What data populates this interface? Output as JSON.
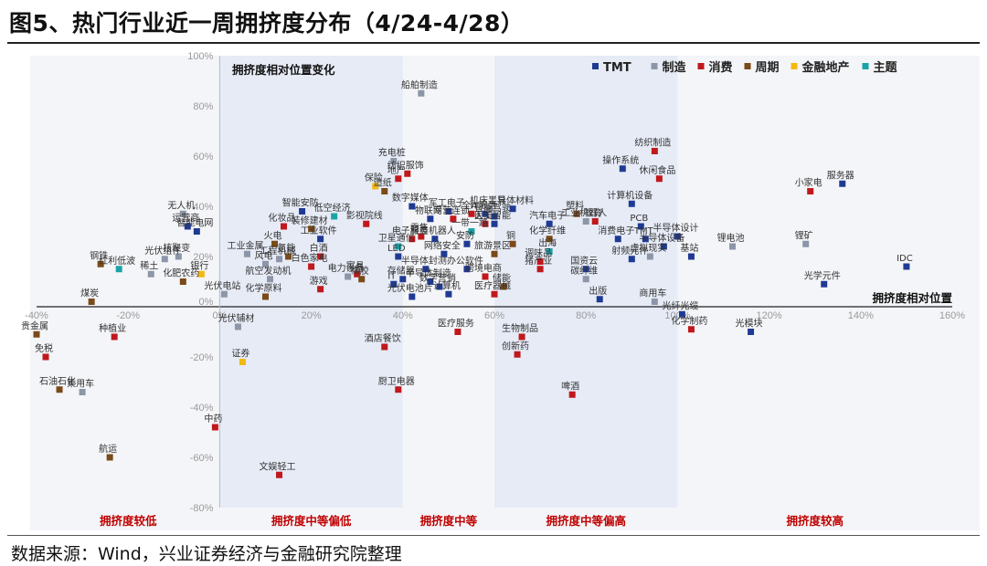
{
  "title": "图5、热门行业近一周拥挤度分布（4/24-4/28）",
  "source": "数据来源：Wind，兴业证券经济与金融研究院整理",
  "colors": {
    "TMT": "#1f3a93",
    "制造": "#8c96a8",
    "消费": "#c0181c",
    "周期": "#7a4a18",
    "金融地产": "#f2b90f",
    "主题": "#1aa3a6"
  },
  "chart_data": {
    "type": "scatter",
    "xlabel": "拥挤度相对位置",
    "ylabel": "拥挤度相对位置变化",
    "xlim": [
      -0.4,
      1.6
    ],
    "ylim": [
      -0.8,
      1.0
    ],
    "x_ticks": [
      "-40%",
      "-20%",
      "0%",
      "20%",
      "40%",
      "60%",
      "80%",
      "100%",
      "120%",
      "140%",
      "160%"
    ],
    "y_ticks": [
      "100%",
      "80%",
      "60%",
      "40%",
      "20%",
      "0%",
      "-20%",
      "-40%",
      "-60%",
      "-80%"
    ],
    "zones": [
      {
        "label": "拥挤度较低",
        "x0": -0.4,
        "x1": 0.0
      },
      {
        "label": "拥挤度中等偏低",
        "x0": 0.0,
        "x1": 0.4
      },
      {
        "label": "拥挤度中等",
        "x0": 0.4,
        "x1": 0.6
      },
      {
        "label": "拥挤度中等偏高",
        "x0": 0.6,
        "x1": 1.0
      },
      {
        "label": "拥挤度较高",
        "x0": 1.0,
        "x1": 1.6
      }
    ],
    "series": [
      {
        "name": "TMT",
        "points": [
          {
            "label": "服务器",
            "x": 1.36,
            "y": 0.49
          },
          {
            "label": "IDC",
            "x": 1.5,
            "y": 0.16
          },
          {
            "label": "光学元件",
            "x": 1.32,
            "y": 0.09
          },
          {
            "label": "光模块",
            "x": 1.16,
            "y": -0.1
          },
          {
            "label": "光纤光缆",
            "x": 1.01,
            "y": -0.03
          },
          {
            "label": "计算机设备",
            "x": 0.9,
            "y": 0.41
          },
          {
            "label": "PCB",
            "x": 0.92,
            "y": 0.32
          },
          {
            "label": "TMT",
            "x": 0.93,
            "y": 0.27
          },
          {
            "label": "半导体设计",
            "x": 1.0,
            "y": 0.28
          },
          {
            "label": "半导体设备",
            "x": 0.97,
            "y": 0.24
          },
          {
            "label": "基站",
            "x": 1.03,
            "y": 0.2
          },
          {
            "label": "操作系统",
            "x": 0.88,
            "y": 0.55
          },
          {
            "label": "消费电子",
            "x": 0.87,
            "y": 0.27
          },
          {
            "label": "射频元件",
            "x": 0.9,
            "y": 0.19
          },
          {
            "label": "出版",
            "x": 0.83,
            "y": 0.03
          },
          {
            "label": "国资云",
            "x": 0.8,
            "y": 0.15
          },
          {
            "label": "数字媒体",
            "x": 0.42,
            "y": 0.4
          },
          {
            "label": "物联网",
            "x": 0.46,
            "y": 0.35
          },
          {
            "label": "军工电子",
            "x": 0.5,
            "y": 0.38
          },
          {
            "label": "IT服务",
            "x": 0.58,
            "y": 0.37
          },
          {
            "label": "人工智能",
            "x": 0.6,
            "y": 0.33
          },
          {
            "label": "智能驾驶",
            "x": 0.6,
            "y": 0.36
          },
          {
            "label": "半导体材料",
            "x": 0.64,
            "y": 0.39
          },
          {
            "label": "汽车电子",
            "x": 0.72,
            "y": 0.33
          },
          {
            "label": "安防",
            "x": 0.54,
            "y": 0.25
          },
          {
            "label": "网络安全",
            "x": 0.49,
            "y": 0.21
          },
          {
            "label": "半导体封测",
            "x": 0.45,
            "y": 0.15
          },
          {
            "label": "LED",
            "x": 0.39,
            "y": 0.2
          },
          {
            "label": "办公软件",
            "x": 0.54,
            "y": 0.15
          },
          {
            "label": "IT",
            "x": 0.38,
            "y": 0.09
          },
          {
            "label": "光伏电池片",
            "x": 0.42,
            "y": 0.04
          },
          {
            "label": "数字营销",
            "x": 0.48,
            "y": 0.08
          },
          {
            "label": "半导体制造",
            "x": 0.46,
            "y": 0.1
          },
          {
            "label": "计算机",
            "x": 0.5,
            "y": 0.05
          },
          {
            "label": "存储器",
            "x": 0.4,
            "y": 0.11
          },
          {
            "label": "服务机器人",
            "x": 0.47,
            "y": 0.27
          },
          {
            "label": "工业软件",
            "x": 0.22,
            "y": 0.27
          },
          {
            "label": "智能安防",
            "x": 0.18,
            "y": 0.38
          },
          {
            "label": "智能电网",
            "x": -0.05,
            "y": 0.3
          },
          {
            "label": "运营商",
            "x": -0.07,
            "y": 0.32
          }
        ]
      },
      {
        "name": "制造",
        "points": [
          {
            "label": "船舶制造",
            "x": 0.44,
            "y": 0.85
          },
          {
            "label": "充电桩",
            "x": 0.38,
            "y": 0.58
          },
          {
            "label": "无人机",
            "x": -0.08,
            "y": 0.37
          },
          {
            "label": "核聚变",
            "x": -0.09,
            "y": 0.2
          },
          {
            "label": "稀土",
            "x": -0.15,
            "y": 0.13
          },
          {
            "label": "光伏组件",
            "x": -0.12,
            "y": 0.19
          },
          {
            "label": "工业金属",
            "x": 0.06,
            "y": 0.21
          },
          {
            "label": "工程机械",
            "x": 0.13,
            "y": 0.19
          },
          {
            "label": "风电",
            "x": 0.1,
            "y": 0.17
          },
          {
            "label": "航空发动机",
            "x": 0.11,
            "y": 0.11
          },
          {
            "label": "光伏电站",
            "x": 0.01,
            "y": 0.05
          },
          {
            "label": "光伏辅材",
            "x": 0.04,
            "y": -0.08
          },
          {
            "label": "锂矿",
            "x": 1.28,
            "y": 0.25
          },
          {
            "label": "锂电池",
            "x": 1.12,
            "y": 0.24
          },
          {
            "label": "商用车",
            "x": 0.95,
            "y": 0.02
          },
          {
            "label": "工业机器人",
            "x": 0.8,
            "y": 0.34
          },
          {
            "label": "碳纤维",
            "x": 0.8,
            "y": 0.11
          },
          {
            "label": "虚拟现实",
            "x": 0.94,
            "y": 0.2
          },
          {
            "label": "机床工具",
            "x": 0.59,
            "y": 0.39
          },
          {
            "label": "乘用车",
            "x": -0.3,
            "y": -0.34
          },
          {
            "label": "电力设备",
            "x": 0.28,
            "y": 0.12
          }
        ]
      },
      {
        "name": "消费",
        "points": [
          {
            "label": "纺织制造",
            "x": 0.95,
            "y": 0.62
          },
          {
            "label": "休闲食品",
            "x": 0.96,
            "y": 0.51
          },
          {
            "label": "小家电",
            "x": 1.29,
            "y": 0.46
          },
          {
            "label": "纺织服饰",
            "x": 0.41,
            "y": 0.53
          },
          {
            "label": "地产",
            "x": 0.39,
            "y": 0.51
          },
          {
            "label": "化妆品",
            "x": 0.14,
            "y": 0.32
          },
          {
            "label": "影视院线",
            "x": 0.32,
            "y": 0.33
          },
          {
            "label": "白酒",
            "x": 0.22,
            "y": 0.2
          },
          {
            "label": "白色家电",
            "x": 0.2,
            "y": 0.16
          },
          {
            "label": "家具",
            "x": 0.3,
            "y": 0.13
          },
          {
            "label": "游戏",
            "x": 0.22,
            "y": 0.07
          },
          {
            "label": "零售",
            "x": 0.44,
            "y": 0.28
          },
          {
            "label": "教育",
            "x": 0.82,
            "y": 0.34
          },
          {
            "label": "调味品",
            "x": 0.7,
            "y": 0.18
          },
          {
            "label": "猪产业",
            "x": 0.7,
            "y": 0.15
          },
          {
            "label": "跨境电商",
            "x": 0.58,
            "y": 0.12
          },
          {
            "label": "医疗器械",
            "x": 0.6,
            "y": 0.05
          },
          {
            "label": "医美",
            "x": 0.58,
            "y": 0.33
          },
          {
            "label": "医疗服务",
            "x": 0.52,
            "y": -0.1
          },
          {
            "label": "生物制品",
            "x": 0.66,
            "y": -0.12
          },
          {
            "label": "创新药",
            "x": 0.65,
            "y": -0.19
          },
          {
            "label": "啤酒",
            "x": 0.77,
            "y": -0.35
          },
          {
            "label": "酒店餐饮",
            "x": 0.36,
            "y": -0.16
          },
          {
            "label": "厨卫电器",
            "x": 0.39,
            "y": -0.33
          },
          {
            "label": "中药",
            "x": -0.01,
            "y": -0.48
          },
          {
            "label": "文娱轻工",
            "x": 0.13,
            "y": -0.67
          },
          {
            "label": "免税",
            "x": -0.38,
            "y": -0.2
          },
          {
            "label": "种植业",
            "x": -0.23,
            "y": -0.12
          },
          {
            "label": "化学制药",
            "x": 1.03,
            "y": -0.09
          },
          {
            "label": "全A",
            "x": 0.55,
            "y": 0.37
          },
          {
            "label": "专营连锁",
            "x": 0.51,
            "y": 0.35
          },
          {
            "label": "电子科技",
            "x": 0.42,
            "y": 0.27
          }
        ]
      },
      {
        "name": "周期",
        "points": [
          {
            "label": "钢铁",
            "x": -0.26,
            "y": 0.17
          },
          {
            "label": "煤炭",
            "x": -0.28,
            "y": 0.02
          },
          {
            "label": "化肥农药",
            "x": -0.08,
            "y": 0.1
          },
          {
            "label": "火电",
            "x": 0.12,
            "y": 0.25
          },
          {
            "label": "化学原料",
            "x": 0.1,
            "y": 0.04
          },
          {
            "label": "氢能",
            "x": 0.15,
            "y": 0.2
          },
          {
            "label": "造纸",
            "x": 0.36,
            "y": 0.46
          },
          {
            "label": "橡胶",
            "x": 0.31,
            "y": 0.11
          },
          {
            "label": "贵金属",
            "x": -0.4,
            "y": -0.11
          },
          {
            "label": "石油石化",
            "x": -0.35,
            "y": -0.33
          },
          {
            "label": "航运",
            "x": -0.24,
            "y": -0.6
          },
          {
            "label": "塑料",
            "x": 0.78,
            "y": 0.37
          },
          {
            "label": "旅游景区",
            "x": 0.6,
            "y": 0.21
          },
          {
            "label": "化学纤维",
            "x": 0.72,
            "y": 0.27
          },
          {
            "label": "储能",
            "x": 0.62,
            "y": 0.08
          },
          {
            "label": "装修建材",
            "x": 0.2,
            "y": 0.31
          },
          {
            "label": "铜",
            "x": 0.64,
            "y": 0.25
          }
        ]
      },
      {
        "name": "金融地产",
        "points": [
          {
            "label": "银行",
            "x": -0.04,
            "y": 0.13
          },
          {
            "label": "证券",
            "x": 0.05,
            "y": -0.22
          },
          {
            "label": "保险",
            "x": 0.34,
            "y": 0.48
          }
        ]
      },
      {
        "name": "主题",
        "points": [
          {
            "label": "红利低波",
            "x": -0.22,
            "y": 0.15
          },
          {
            "label": "低空经济",
            "x": 0.25,
            "y": 0.36
          },
          {
            "label": "出海",
            "x": 0.72,
            "y": 0.22
          },
          {
            "label": "一带一路",
            "x": 0.55,
            "y": 0.3
          },
          {
            "label": "卫星通信",
            "x": 0.39,
            "y": 0.24
          }
        ]
      }
    ]
  }
}
